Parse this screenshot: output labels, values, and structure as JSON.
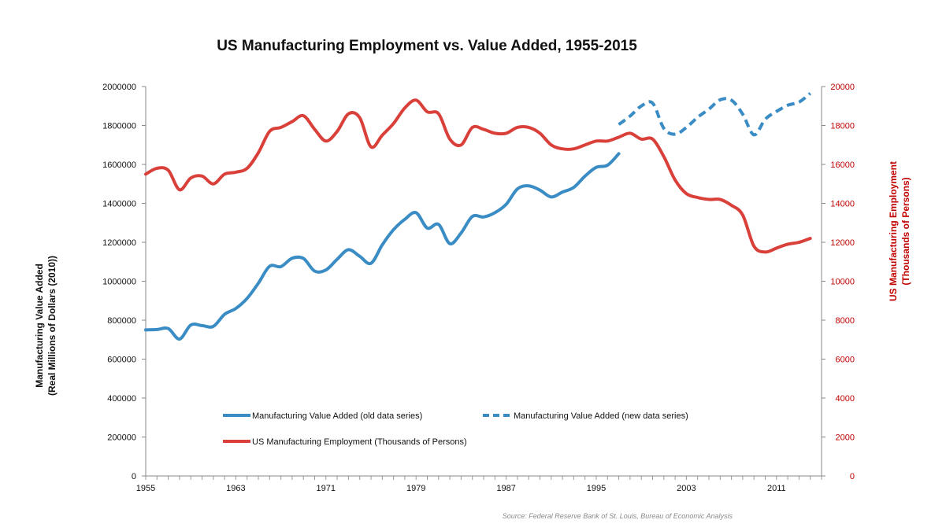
{
  "chart_data": {
    "type": "line",
    "title": "US Manufacturing Employment vs. Value Added, 1955-2015",
    "source": "Source: Federal Reserve Bank of St. Louis, Bureau of Economic Analysis",
    "x_tick_labels": [
      "1955",
      "1963",
      "1971",
      "1979",
      "1987",
      "1995",
      "2003",
      "2011"
    ],
    "xlim": [
      1955,
      2015
    ],
    "y_left": {
      "label_line1": "Manufacturing Value Added",
      "label_line2": "(Real Millions of Dollars (2010))",
      "ylim": [
        0,
        2000000
      ],
      "tick_labels": [
        "0",
        "200000",
        "400000",
        "600000",
        "800000",
        "1000000",
        "1200000",
        "1400000",
        "1600000",
        "1800000",
        "2000000"
      ]
    },
    "y_right": {
      "label_line1": "US Manufacturing Employment",
      "label_line2": "(Thousands of Persons)",
      "ylim": [
        0,
        20000
      ],
      "tick_labels": [
        "0",
        "2000",
        "4000",
        "6000",
        "8000",
        "10000",
        "12000",
        "14000",
        "16000",
        "18000",
        "20000"
      ],
      "color": "#c00000"
    },
    "legend": [
      "Manufacturing Value Added (old data series)",
      "Manufacturing Value Added (new data series)",
      "US Manufacturing Employment (Thousands of Persons)"
    ],
    "series": [
      {
        "name": "Manufacturing Value Added (old data series)",
        "axis": "left",
        "color": "#3a8cc4",
        "dash": false,
        "x": [
          1955,
          1956,
          1957,
          1958,
          1959,
          1960,
          1961,
          1962,
          1963,
          1964,
          1965,
          1966,
          1967,
          1968,
          1969,
          1970,
          1971,
          1972,
          1973,
          1974,
          1975,
          1976,
          1977,
          1978,
          1979,
          1980,
          1981,
          1982,
          1983,
          1984,
          1985,
          1986,
          1987,
          1988,
          1989,
          1990,
          1991,
          1992,
          1993,
          1994,
          1995,
          1996,
          1997
        ],
        "y": [
          750000,
          752000,
          757000,
          703000,
          775000,
          772000,
          768000,
          830000,
          860000,
          912000,
          990000,
          1077000,
          1075000,
          1118000,
          1117000,
          1052000,
          1058000,
          1113000,
          1162000,
          1128000,
          1092000,
          1187000,
          1265000,
          1318000,
          1352000,
          1273000,
          1292000,
          1193000,
          1248000,
          1333000,
          1330000,
          1352000,
          1395000,
          1474000,
          1490000,
          1468000,
          1433000,
          1458000,
          1482000,
          1540000,
          1585000,
          1596000,
          1655000
        ]
      },
      {
        "name": "Manufacturing Value Added (new data series)",
        "axis": "left",
        "color": "#3a8cc4",
        "dash": true,
        "x": [
          1997,
          1998,
          1999,
          2000,
          2001,
          2002,
          2003,
          2004,
          2005,
          2006,
          2007,
          2008,
          2009,
          2010,
          2011,
          2012,
          2013,
          2014
        ],
        "y": [
          1805000,
          1848000,
          1900000,
          1915000,
          1785000,
          1755000,
          1790000,
          1842000,
          1884000,
          1932000,
          1930000,
          1858000,
          1752000,
          1832000,
          1872000,
          1904000,
          1920000,
          1965000
        ]
      },
      {
        "name": "US Manufacturing Employment (Thousands of Persons)",
        "axis": "right",
        "color": "#d9403a",
        "dash": false,
        "x": [
          1955,
          1956,
          1957,
          1958,
          1959,
          1960,
          1961,
          1962,
          1963,
          1964,
          1965,
          1966,
          1967,
          1968,
          1969,
          1970,
          1971,
          1972,
          1973,
          1974,
          1975,
          1976,
          1977,
          1978,
          1979,
          1980,
          1981,
          1982,
          1983,
          1984,
          1985,
          1986,
          1987,
          1988,
          1989,
          1990,
          1991,
          1992,
          1993,
          1994,
          1995,
          1996,
          1997,
          1998,
          1999,
          2000,
          2001,
          2002,
          2003,
          2004,
          2005,
          2006,
          2007,
          2008,
          2009,
          2010,
          2011,
          2012,
          2013,
          2014
        ],
        "y": [
          15500,
          15800,
          15700,
          14700,
          15300,
          15400,
          15000,
          15500,
          15600,
          15800,
          16600,
          17700,
          17900,
          18200,
          18500,
          17800,
          17200,
          17700,
          18600,
          18400,
          16900,
          17500,
          18100,
          18900,
          19300,
          18700,
          18600,
          17300,
          17000,
          17900,
          17800,
          17600,
          17600,
          17900,
          17900,
          17600,
          17000,
          16800,
          16800,
          17000,
          17200,
          17200,
          17400,
          17600,
          17300,
          17300,
          16400,
          15200,
          14500,
          14300,
          14200,
          14200,
          13900,
          13400,
          11800,
          11500,
          11700,
          11900,
          12000,
          12200
        ]
      }
    ]
  }
}
